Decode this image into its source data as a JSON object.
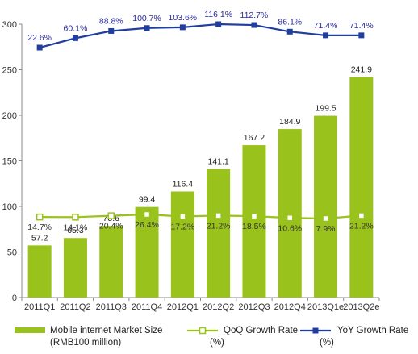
{
  "chart_data": {
    "type": "bar",
    "categories": [
      "2011Q1",
      "2011Q2",
      "2011Q3",
      "2011Q4",
      "2012Q1",
      "2012Q2",
      "2012Q3",
      "2012Q4",
      "2013Q1e",
      "2013Q2e"
    ],
    "ylim": [
      0,
      300
    ],
    "yticks": [
      0,
      50,
      100,
      150,
      200,
      250,
      300
    ],
    "series": [
      {
        "name": "Mobile internet Market Size (RMB100 million)",
        "legend_lines": [
          "Mobile internet Market Size",
          "(RMB100 million)"
        ],
        "kind": "bar",
        "color": "#99c21c",
        "values": [
          57.2,
          65.3,
          78.6,
          99.4,
          116.4,
          141.1,
          167.2,
          184.9,
          199.5,
          241.9
        ],
        "labels": [
          "57.2",
          "65.3",
          "78.6",
          "99.4",
          "116.4",
          "141.1",
          "167.2",
          "184.9",
          "199.5",
          "241.9"
        ]
      },
      {
        "name": "QoQ Growth Rate (%)",
        "legend_lines": [
          "QoQ Growth Rate",
          "(%)"
        ],
        "kind": "line",
        "color": "#99c21c",
        "values": [
          14.7,
          14.1,
          20.4,
          26.4,
          17.2,
          21.2,
          18.5,
          10.6,
          7.9,
          21.2
        ],
        "labels": [
          "14.7%",
          "14.1%",
          "20.4%",
          "26.4%",
          "17.2%",
          "21.2%",
          "18.5%",
          "10.6%",
          "7.9%",
          "21.2%"
        ]
      },
      {
        "name": "YoY Growth Rate (%)",
        "legend_lines": [
          "YoY Growth Rate",
          "(%)"
        ],
        "kind": "line",
        "color": "#1f3ea0",
        "values": [
          22.6,
          60.1,
          88.8,
          100.7,
          103.6,
          116.1,
          112.7,
          86.1,
          71.4,
          71.4
        ],
        "labels": [
          "22.6%",
          "60.1%",
          "88.8%",
          "100.7%",
          "103.6%",
          "116.1%",
          "112.7%",
          "86.1%",
          "71.4%",
          "71.4%"
        ]
      }
    ],
    "legend_position": "bottom",
    "grid": false
  }
}
